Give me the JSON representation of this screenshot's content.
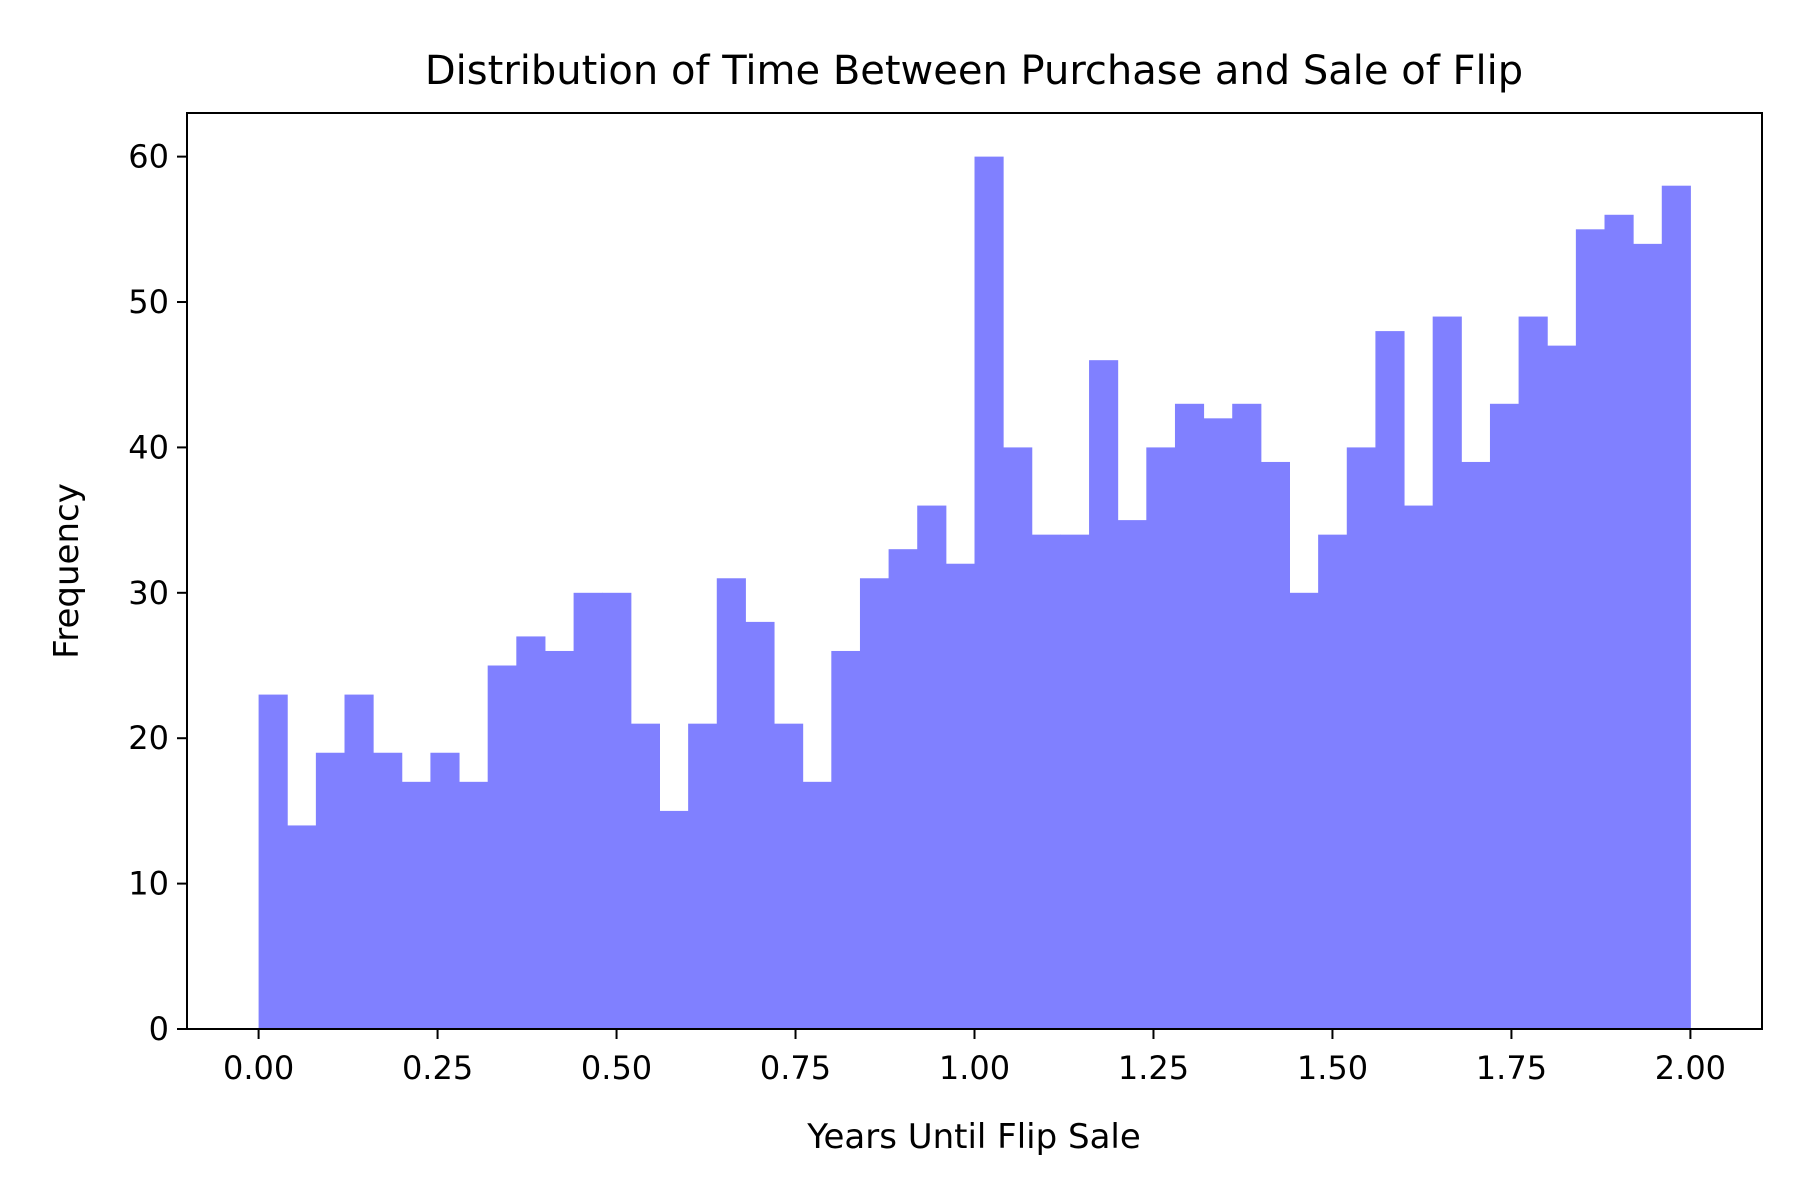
{
  "chart_data": {
    "type": "bar",
    "subtype": "histogram",
    "title": "Distribution of Time Between Purchase and Sale of Flip",
    "xlabel": "Years Until Flip Sale",
    "ylabel": "Frequency",
    "xlim": [
      -0.1,
      2.1
    ],
    "ylim": [
      0,
      63
    ],
    "xticks": [
      "0.00",
      "0.25",
      "0.50",
      "0.75",
      "1.00",
      "1.25",
      "1.50",
      "1.75",
      "2.00"
    ],
    "yticks": [
      "0",
      "10",
      "20",
      "30",
      "40",
      "50",
      "60"
    ],
    "bins": {
      "start": 0.0,
      "end": 2.0,
      "count": 50
    },
    "values": [
      23,
      14,
      19,
      23,
      19,
      17,
      19,
      17,
      25,
      27,
      26,
      30,
      30,
      21,
      15,
      21,
      31,
      28,
      21,
      17,
      26,
      31,
      33,
      36,
      32,
      60,
      40,
      34,
      34,
      46,
      35,
      40,
      43,
      42,
      43,
      39,
      30,
      34,
      40,
      48,
      36,
      49,
      39,
      43,
      49,
      47,
      55,
      56,
      54,
      58
    ],
    "bar_color": "#8080ff",
    "grid": false,
    "legend": "none"
  }
}
